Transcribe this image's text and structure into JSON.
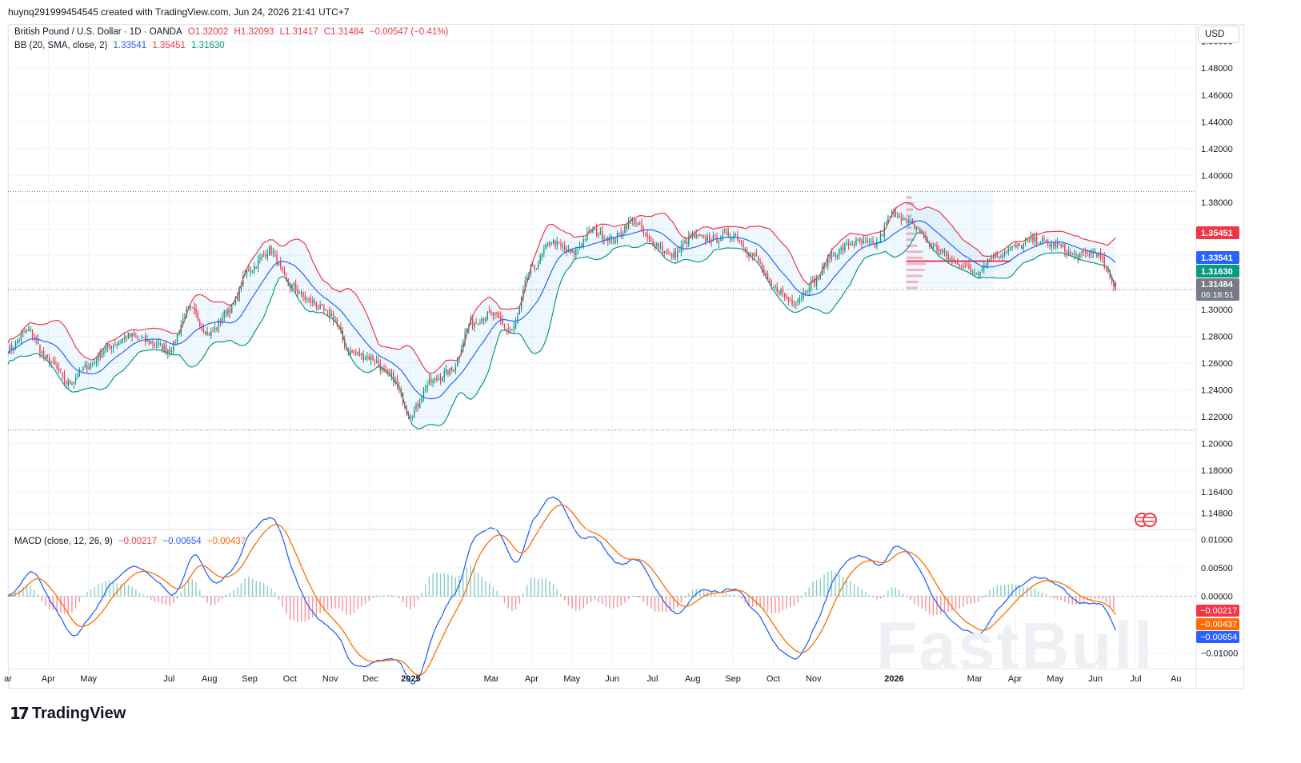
{
  "header": {
    "created_by": "huynq291999454545 created with TradingView.com, Jun 24, 2026 21:41 UTC+7"
  },
  "legend": {
    "symbol": "British Pound / U.S. Dollar · 1D · OANDA",
    "open": "O1.32002",
    "high": "H1.32093",
    "low": "L1.31417",
    "close": "C1.31484",
    "change": "−0.00547 (−0.41%)",
    "bb_label": "BB (20, SMA, close, 2)",
    "bb_basis": "1.33541",
    "bb_upper": "1.35451",
    "bb_lower": "1.31630",
    "macd_label": "MACD (close, 12, 26, 9)",
    "macd_hist": "−0.00217",
    "macd_line": "−0.00654",
    "macd_signal": "−0.00437"
  },
  "currency": "USD",
  "brand": {
    "logo": "TradingView",
    "watermark": "FastBull"
  },
  "colors": {
    "up": "#089981",
    "down": "#f23645",
    "basis": "#2962ff",
    "upper": "#f23645",
    "lower": "#089981",
    "macd": "#2962ff",
    "signal": "#ff6d00",
    "band_fill": "#2196f3"
  },
  "price_labels": {
    "upper": "1.35451",
    "basis": "1.33541",
    "lower": "1.31630",
    "last": "1.31484",
    "countdown": "06:18:51"
  },
  "macd_labels": {
    "hist": "−0.00217",
    "signal": "−0.00437",
    "macd": "−0.00654"
  },
  "chart_data": {
    "type": "candlestick",
    "price_axis": {
      "ylim": [
        1.137,
        1.507
      ],
      "ticks": [
        "1.50000",
        "1.48000",
        "1.46000",
        "1.44000",
        "1.42000",
        "1.40000",
        "1.38000",
        "1.36000",
        "1.34000",
        "1.32000",
        "1.30000",
        "1.28000",
        "1.26000",
        "1.24000",
        "1.22000",
        "1.20000",
        "1.18000",
        "1.16400",
        "1.14800"
      ],
      "tick_values": [
        1.5,
        1.48,
        1.46,
        1.44,
        1.42,
        1.4,
        1.38,
        1.36,
        1.34,
        1.32,
        1.3,
        1.28,
        1.26,
        1.24,
        1.22,
        1.2,
        1.18,
        1.164,
        1.148
      ]
    },
    "macd_axis": {
      "ylim": [
        -0.0125,
        0.0115
      ],
      "ticks": [
        "0.01000",
        "0.00500",
        "0.00000",
        "−0.01000"
      ],
      "tick_values": [
        0.01,
        0.005,
        0.0,
        -0.01
      ]
    },
    "time_axis": {
      "labels": [
        "ar",
        "Apr",
        "May",
        "Jul",
        "Aug",
        "Sep",
        "Oct",
        "Nov",
        "Dec",
        "2025",
        "Mar",
        "Apr",
        "May",
        "Jun",
        "Jul",
        "Aug",
        "Sep",
        "Oct",
        "Nov",
        "2026",
        "Mar",
        "Apr",
        "May",
        "Jun",
        "Jul",
        "Au"
      ],
      "positions": [
        0.0,
        2.0,
        4.0,
        8.0,
        10.0,
        12.0,
        14.0,
        16.0,
        18.0,
        20.0,
        24.0,
        26.0,
        28.0,
        30.0,
        32.0,
        34.0,
        36.0,
        38.0,
        40.0,
        44.0,
        48.0,
        50.0,
        52.0,
        54.0,
        56.0,
        58.0
      ],
      "x_range": [
        0,
        59
      ]
    },
    "dotted_levels": [
      1.388,
      1.3148,
      1.21
    ],
    "close_keyframes": [
      [
        0,
        1.27
      ],
      [
        1,
        1.284
      ],
      [
        2,
        1.262
      ],
      [
        3,
        1.245
      ],
      [
        4,
        1.258
      ],
      [
        5,
        1.272
      ],
      [
        6,
        1.28
      ],
      [
        7,
        1.276
      ],
      [
        8,
        1.27
      ],
      [
        9,
        1.3
      ],
      [
        10,
        1.282
      ],
      [
        11,
        1.3
      ],
      [
        12,
        1.33
      ],
      [
        13,
        1.344
      ],
      [
        14,
        1.318
      ],
      [
        15,
        1.306
      ],
      [
        16,
        1.296
      ],
      [
        17,
        1.268
      ],
      [
        18,
        1.264
      ],
      [
        19,
        1.25
      ],
      [
        20,
        1.222
      ],
      [
        21,
        1.246
      ],
      [
        22,
        1.254
      ],
      [
        23,
        1.29
      ],
      [
        24,
        1.296
      ],
      [
        25,
        1.284
      ],
      [
        26,
        1.33
      ],
      [
        27,
        1.35
      ],
      [
        28,
        1.342
      ],
      [
        29,
        1.358
      ],
      [
        30,
        1.352
      ],
      [
        31,
        1.366
      ],
      [
        32,
        1.35
      ],
      [
        33,
        1.34
      ],
      [
        34,
        1.354
      ],
      [
        35,
        1.352
      ],
      [
        36,
        1.356
      ],
      [
        37,
        1.34
      ],
      [
        38,
        1.316
      ],
      [
        39,
        1.306
      ],
      [
        40,
        1.32
      ],
      [
        41,
        1.342
      ],
      [
        42,
        1.35
      ],
      [
        43,
        1.348
      ],
      [
        44,
        1.372
      ],
      [
        45,
        1.362
      ],
      [
        46,
        1.346
      ],
      [
        47,
        1.336
      ],
      [
        48,
        1.328
      ],
      [
        49,
        1.34
      ],
      [
        50,
        1.346
      ],
      [
        51,
        1.352
      ],
      [
        52,
        1.348
      ],
      [
        53,
        1.34
      ],
      [
        54,
        1.342
      ],
      [
        55,
        1.318
      ]
    ],
    "last": {
      "close": 1.31484,
      "open": 1.32002,
      "high": 1.32093,
      "low": 1.31417
    },
    "bollinger": {
      "period": 20,
      "stdev": 2,
      "basis": 1.33541,
      "upper": 1.35451,
      "lower": 1.3163
    },
    "macd": {
      "fast": 12,
      "slow": 26,
      "signal": 9,
      "macd": -0.00654,
      "signal_value": -0.00437,
      "histogram": -0.00217
    }
  }
}
